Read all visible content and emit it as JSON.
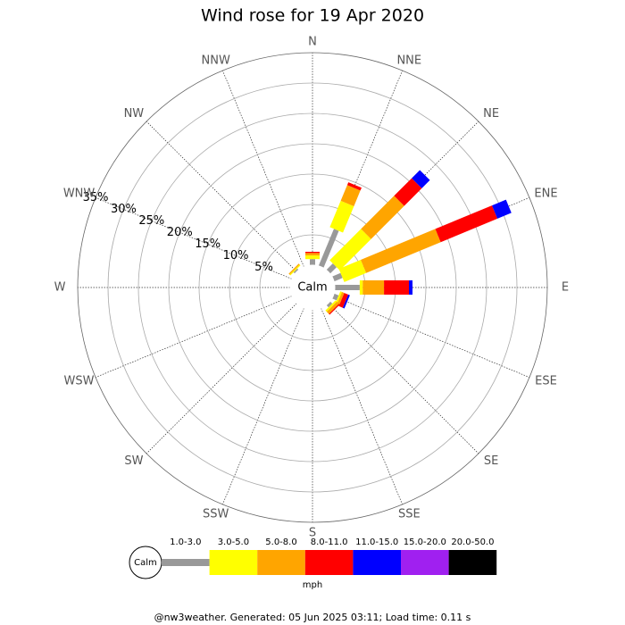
{
  "chart_data": {
    "type": "windrose",
    "title": "Wind rose for 19 Apr 2020",
    "directions": [
      "N",
      "NNE",
      "NE",
      "ENE",
      "E",
      "ESE",
      "SE",
      "SSE",
      "S",
      "SSW",
      "SW",
      "WSW",
      "W",
      "WNW",
      "NW",
      "NNW"
    ],
    "center_label": "Calm",
    "rlim": [
      0,
      35
    ],
    "rticks": [
      {
        "value": 5,
        "label": "5%"
      },
      {
        "value": 10,
        "label": "10%"
      },
      {
        "value": 15,
        "label": "15%"
      },
      {
        "value": 20,
        "label": "20%"
      },
      {
        "value": 25,
        "label": "25%"
      },
      {
        "value": 30,
        "label": "30%"
      },
      {
        "value": 35,
        "label": "35%"
      }
    ],
    "series": [
      {
        "name": "1.0-3.0",
        "color": "#999999",
        "values": [
          1.0,
          6.6,
          1.5,
          1.5,
          4.1,
          0.8,
          0.5,
          0,
          0,
          0,
          0,
          0,
          0,
          0,
          0.3,
          0
        ]
      },
      {
        "name": "3.0-5.0",
        "color": "#ffff00",
        "values": [
          0.6,
          4.7,
          7.3,
          3.9,
          0.5,
          0.3,
          0.3,
          0,
          0,
          0,
          0,
          0,
          0,
          0,
          0.2,
          0
        ]
      },
      {
        "name": "5.0-8.0",
        "color": "#ffa500",
        "values": [
          0.4,
          2.8,
          7.7,
          13.3,
          3.5,
          0.4,
          0.5,
          0,
          0,
          0,
          0,
          0,
          0,
          0,
          0.2,
          0
        ]
      },
      {
        "name": "8.0-11.0",
        "color": "#ff0000",
        "values": [
          0.2,
          0.5,
          4.1,
          10.1,
          4.1,
          0.7,
          0.2,
          0,
          0,
          0,
          0,
          0,
          0,
          0,
          0,
          0
        ]
      },
      {
        "name": "11.0-15.0",
        "color": "#0000ff",
        "values": [
          0,
          0,
          1.9,
          2.5,
          0.6,
          0.3,
          0,
          0,
          0,
          0,
          0,
          0,
          0,
          0,
          0,
          0
        ]
      },
      {
        "name": "15.0-20.0",
        "color": "#a020f0",
        "values": [
          0,
          0,
          0,
          0,
          0,
          0,
          0,
          0,
          0,
          0,
          0,
          0,
          0,
          0,
          0,
          0
        ]
      },
      {
        "name": "20.0-50.0",
        "color": "#000000",
        "values": [
          0,
          0,
          0,
          0,
          0,
          0,
          0,
          0,
          0,
          0,
          0,
          0,
          0,
          0,
          0,
          0
        ]
      }
    ],
    "legend_unit": "mph",
    "footer": "@nw3weather. Generated: 05 Jun 2025 03:11; Load time: 0.11 s"
  }
}
